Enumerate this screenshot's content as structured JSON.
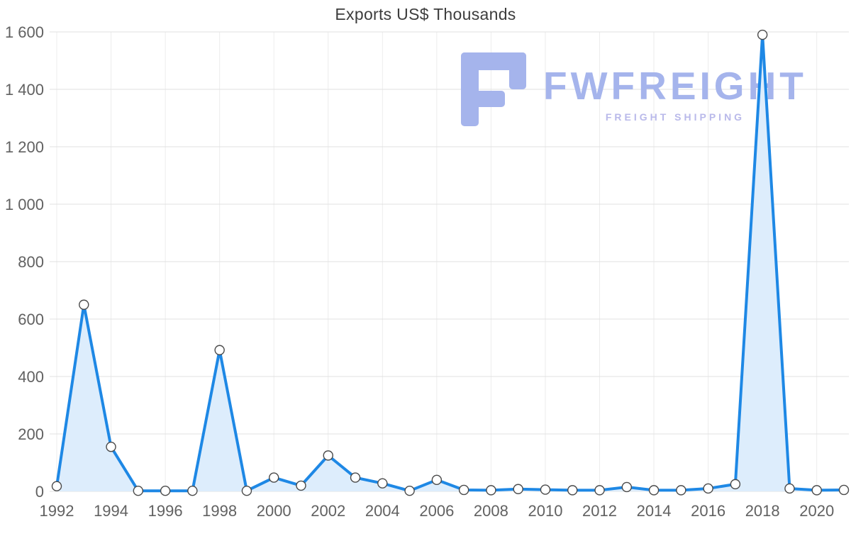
{
  "watermark": {
    "brand": "FWFREIGHT",
    "tagline": "FREIGHT SHIPPING"
  },
  "colors": {
    "line": "#1e88e5",
    "area": "#ddedfc",
    "marker_fill": "#ffffff",
    "marker_stroke": "#4a4a4a",
    "grid": "#e1e1e1",
    "grid_vertical": "#ececec",
    "tick": "#616161",
    "title": "#3d3d3d",
    "watermark_primary": "#a5b4ec",
    "watermark_secondary": "#b9b9ea"
  },
  "chart_data": {
    "type": "area",
    "title": "Exports US$ Thousands",
    "xlabel": "",
    "ylabel": "",
    "x": [
      1992,
      1993,
      1994,
      1995,
      1996,
      1997,
      1998,
      1999,
      2000,
      2001,
      2002,
      2003,
      2004,
      2005,
      2006,
      2007,
      2008,
      2009,
      2010,
      2011,
      2012,
      2013,
      2014,
      2015,
      2016,
      2017,
      2018,
      2019,
      2020,
      2021
    ],
    "values": [
      18,
      650,
      155,
      2,
      2,
      2,
      492,
      2,
      48,
      20,
      125,
      48,
      28,
      2,
      40,
      5,
      4,
      8,
      6,
      4,
      4,
      15,
      4,
      4,
      10,
      25,
      1590,
      10,
      4,
      5
    ],
    "ylim": [
      0,
      1600
    ],
    "grid": true,
    "legend": "none",
    "yticks": [
      {
        "value": 0,
        "label": "0"
      },
      {
        "value": 200,
        "label": "200"
      },
      {
        "value": 400,
        "label": "400"
      },
      {
        "value": 600,
        "label": "600"
      },
      {
        "value": 800,
        "label": "800"
      },
      {
        "value": 1000,
        "label": "1 000"
      },
      {
        "value": 1200,
        "label": "1 200"
      },
      {
        "value": 1400,
        "label": "1 400"
      },
      {
        "value": 1600,
        "label": "1 600"
      }
    ],
    "xticks": [
      1992,
      1994,
      1996,
      1998,
      2000,
      2002,
      2004,
      2006,
      2008,
      2010,
      2012,
      2014,
      2016,
      2018,
      2020
    ]
  }
}
